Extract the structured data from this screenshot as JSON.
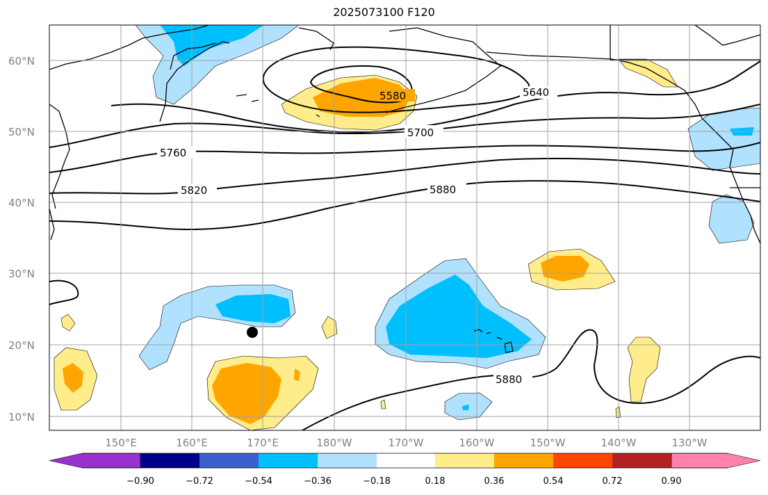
{
  "title": "2025073100 F120",
  "map": {
    "lat_ticks": [
      "60°N",
      "50°N",
      "40°N",
      "30°N",
      "20°N",
      "10°N"
    ],
    "lon_ticks": [
      "150°E",
      "160°E",
      "170°E",
      "180°W",
      "170°W",
      "160°W",
      "150°W",
      "140°W",
      "130°W"
    ],
    "contour_labels": [
      "5580",
      "5640",
      "5700",
      "5760",
      "5820",
      "5880",
      "5880"
    ],
    "marker": "black dot near 22°N 171°E"
  },
  "colorbar": {
    "labels": [
      "−0.90",
      "−0.72",
      "−0.54",
      "−0.36",
      "−0.18",
      "0.18",
      "0.36",
      "0.54",
      "0.72",
      "0.90"
    ],
    "colors": [
      "#9932cc",
      "#00008b",
      "#3a5fcd",
      "#00bfff",
      "#b0e2ff",
      "#ffffff",
      "#ffec8b",
      "#ffa500",
      "#ff4500",
      "#b22222",
      "#ff82ab"
    ]
  }
}
